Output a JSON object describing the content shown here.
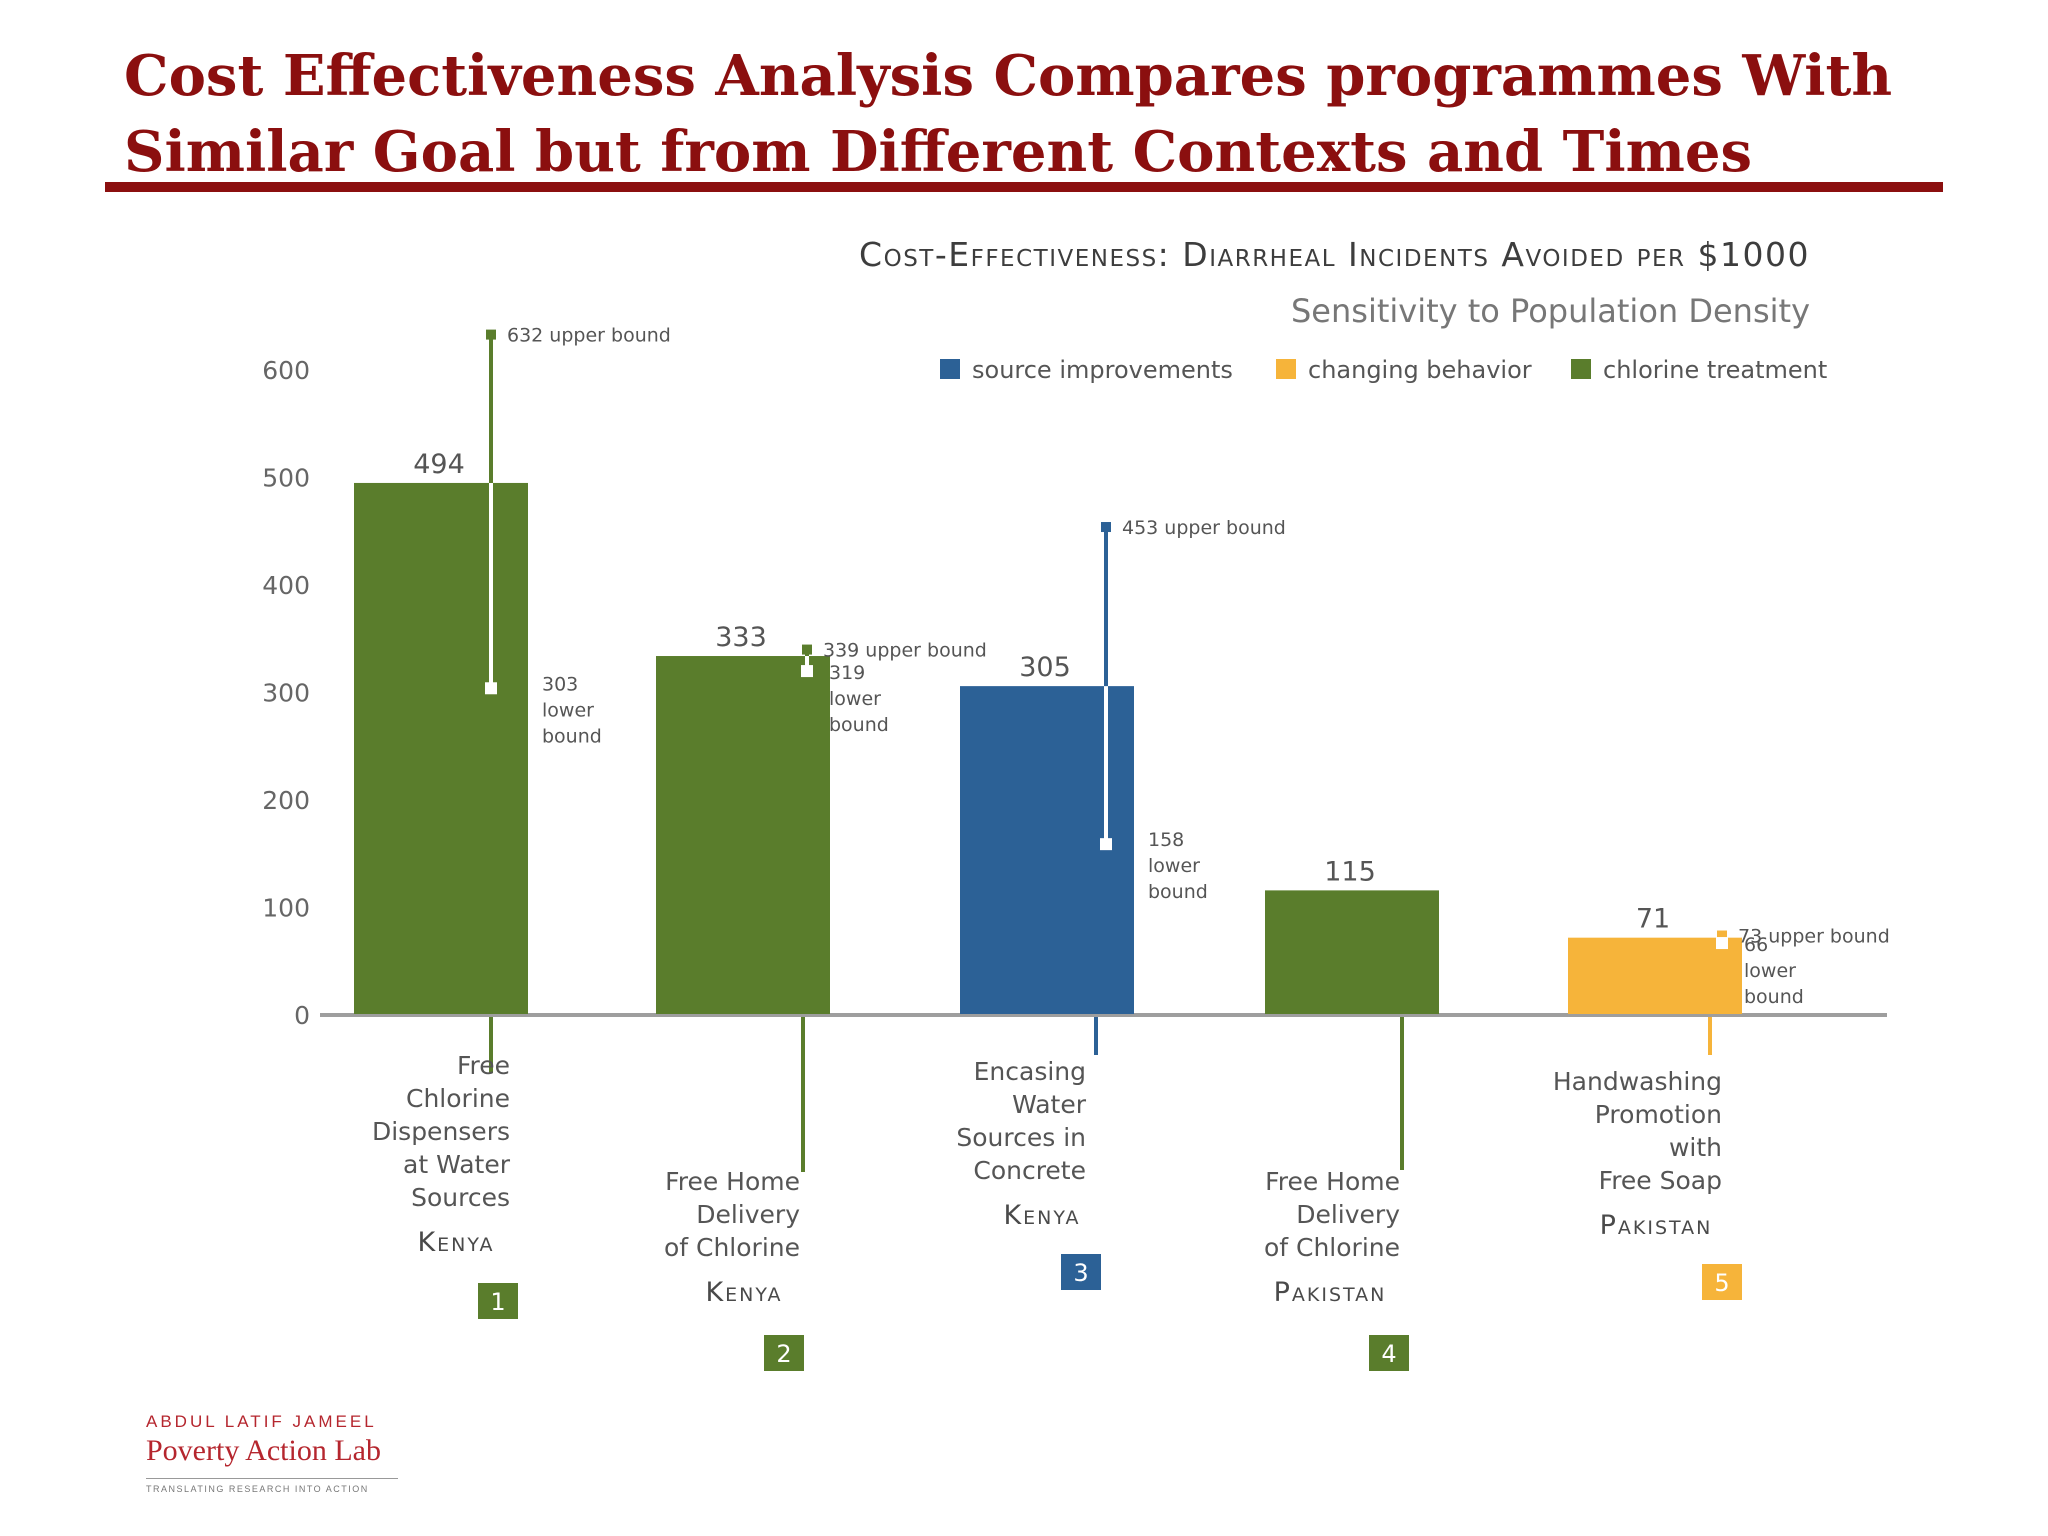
{
  "slide": {
    "title_line1": "Cost Effectiveness Analysis Compares programmes With",
    "title_line2": "Similar Goal but from Different Contexts and Times"
  },
  "colors": {
    "title": "#8b0f0f",
    "source improvements": "#2c6196",
    "changing behavior": "#f6b43a",
    "chlorine treatment": "#5a7d2c"
  },
  "chart_data": {
    "type": "bar",
    "title": "Cost-Effectiveness: Diarrheal Incidents Avoided per $1000",
    "subtitle": "Sensitivity to Population Density",
    "ylim": [
      0,
      600
    ],
    "yticks": [
      0,
      100,
      200,
      300,
      400,
      500,
      600
    ],
    "grid": false,
    "legend_position": "top-right",
    "legend": [
      "source improvements",
      "changing behavior",
      "chlorine treatment"
    ],
    "bars": [
      {
        "number": "1",
        "label": [
          "Free",
          "Chlorine",
          "Dispensers",
          "at Water",
          "Sources"
        ],
        "country": "Kenya",
        "value": 494,
        "value_label": "494",
        "category": "chlorine treatment",
        "upper": 632,
        "upper_label": "632 upper bound",
        "lower": 303,
        "lower_label": [
          "303",
          "lower",
          "bound"
        ]
      },
      {
        "number": "2",
        "label": [
          "Free Home",
          "Delivery",
          "of Chlorine"
        ],
        "country": "Kenya",
        "value": 333,
        "value_label": "333",
        "category": "chlorine treatment",
        "upper": 339,
        "upper_label": "339 upper bound",
        "lower": 319,
        "lower_label": [
          "319",
          "lower",
          "bound"
        ]
      },
      {
        "number": "3",
        "label": [
          "Encasing",
          "Water",
          "Sources in",
          "Concrete"
        ],
        "country": "Kenya",
        "value": 305,
        "value_label": "305",
        "category": "source improvements",
        "upper": 453,
        "upper_label": "453 upper bound",
        "lower": 158,
        "lower_label": [
          "158",
          "lower",
          "bound"
        ]
      },
      {
        "number": "4",
        "label": [
          "Free Home",
          "Delivery",
          "of Chlorine"
        ],
        "country": "Pakistan",
        "value": 115,
        "value_label": "115",
        "category": "chlorine treatment",
        "upper": null,
        "upper_label": null,
        "lower": null,
        "lower_label": null
      },
      {
        "number": "5",
        "label": [
          "Handwashing",
          "Promotion",
          "with",
          "Free Soap"
        ],
        "country": "Pakistan",
        "value": 71,
        "value_label": "71",
        "category": "changing behavior",
        "upper": 73,
        "upper_label": "73 upper bound",
        "lower": 66,
        "lower_label": [
          "66",
          "lower",
          "bound"
        ]
      }
    ]
  },
  "logo": {
    "line1": "ABDUL LATIF JAMEEL",
    "line2": "Poverty Action Lab",
    "line3": "TRANSLATING RESEARCH INTO ACTION"
  }
}
